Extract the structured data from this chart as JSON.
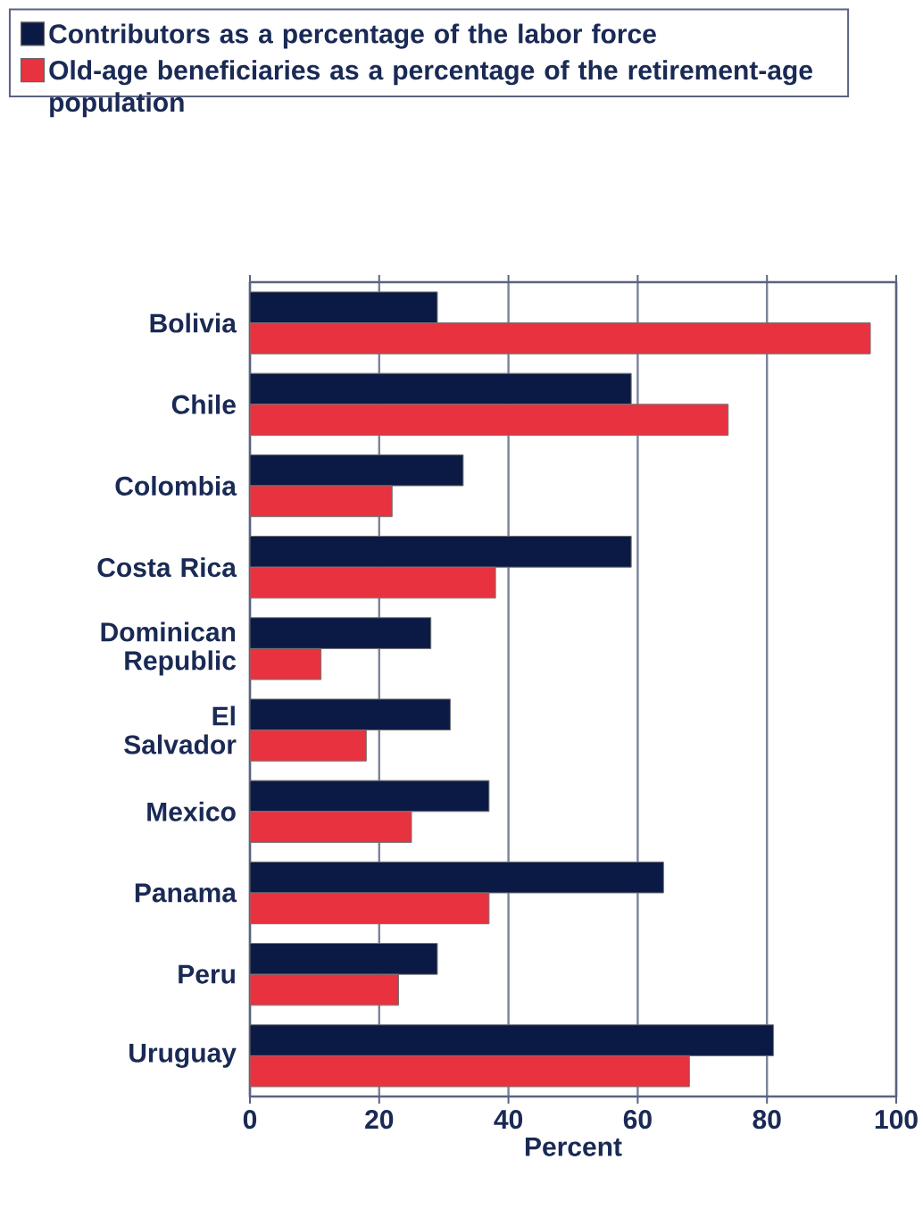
{
  "chart_data": {
    "type": "bar",
    "orientation": "horizontal",
    "xlabel": "Percent",
    "categories": [
      "Bolivia",
      "Chile",
      "Colombia",
      "Costa Rica",
      "Dominican Republic",
      "El Salvador",
      "Mexico",
      "Panama",
      "Peru",
      "Uruguay"
    ],
    "series": [
      {
        "name": "Contributors as a percentage of the labor force",
        "color": "#0b1a45",
        "values": [
          29,
          59,
          33,
          59,
          28,
          31,
          37,
          64,
          29,
          81
        ]
      },
      {
        "name": "Old-age beneficiaries as a percentage of the retirement-age population",
        "color": "#e8323f",
        "values": [
          96,
          74,
          22,
          38,
          11,
          18,
          25,
          37,
          23,
          68
        ]
      }
    ],
    "xlim": [
      0,
      100
    ],
    "xticks": [
      0,
      20,
      40,
      60,
      80,
      100
    ],
    "grid": "x",
    "legend": "top"
  }
}
